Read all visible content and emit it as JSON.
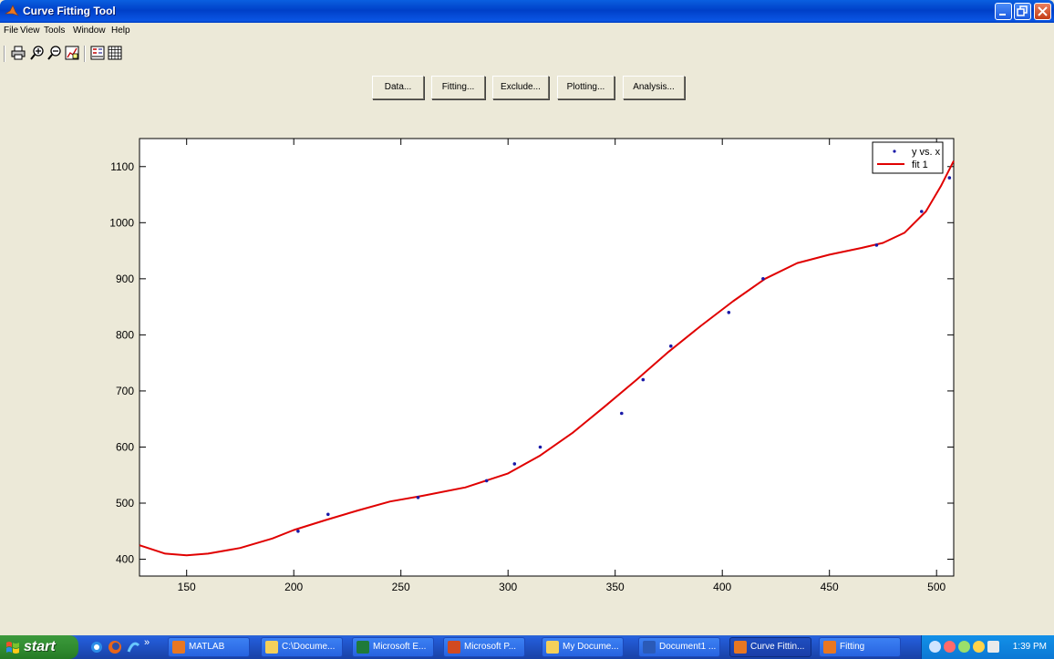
{
  "window": {
    "title": "Curve Fitting Tool",
    "icon": "matlab-icon",
    "controls": [
      "minimize-icon",
      "maximize-icon",
      "close-icon"
    ]
  },
  "menu": {
    "items": [
      "File",
      "View",
      "Tools",
      "Window",
      "Help"
    ]
  },
  "toolbar": {
    "icons": [
      "print-icon",
      "zoom-in-icon",
      "zoom-out-icon",
      "data-cursor-icon",
      "legend-icon",
      "grid-icon"
    ]
  },
  "panel_buttons": {
    "data": "Data...",
    "fitting": "Fitting...",
    "exclude": "Exclude...",
    "plotting": "Plotting...",
    "analysis": "Analysis..."
  },
  "chart_data": {
    "type": "scatter",
    "title": "",
    "xlabel": "",
    "ylabel": "",
    "xlim": [
      128,
      508
    ],
    "ylim": [
      370,
      1150
    ],
    "xticks": [
      150,
      200,
      250,
      300,
      350,
      400,
      450,
      500
    ],
    "yticks": [
      400,
      500,
      600,
      700,
      800,
      900,
      1000,
      1100
    ],
    "grid": false,
    "legend": "top-right",
    "series": [
      {
        "name": "y vs. x",
        "kind": "points",
        "color": "#1a1aa8",
        "x": [
          202,
          216,
          258,
          290,
          303,
          315,
          353,
          363,
          376,
          403,
          419,
          472,
          493,
          506
        ],
        "y": [
          450,
          480,
          510,
          540,
          570,
          600,
          660,
          720,
          780,
          840,
          900,
          960,
          1020,
          1080
        ]
      },
      {
        "name": "fit 1",
        "kind": "line",
        "color": "#e00000",
        "x": [
          128,
          140,
          150,
          160,
          175,
          190,
          200,
          215,
          230,
          245,
          260,
          280,
          300,
          315,
          330,
          345,
          360,
          375,
          390,
          405,
          420,
          435,
          450,
          465,
          475,
          485,
          495,
          502,
          508
        ],
        "y": [
          425,
          410,
          407,
          410,
          420,
          437,
          452,
          470,
          487,
          503,
          513,
          528,
          553,
          585,
          625,
          672,
          720,
          770,
          816,
          860,
          900,
          928,
          943,
          955,
          964,
          982,
          1020,
          1065,
          1110
        ]
      }
    ]
  },
  "taskbar": {
    "start_label": "start",
    "quick_launch": [
      "ie-icon",
      "firefox-icon",
      "ie-alt-icon"
    ],
    "overflow": "»",
    "items": [
      {
        "label": "MATLAB",
        "icon": "matlab-icon"
      },
      {
        "label": "C:\\Docume...",
        "icon": "folder-icon"
      },
      {
        "label": "Microsoft E...",
        "icon": "excel-icon"
      },
      {
        "label": "Microsoft P...",
        "icon": "powerpoint-icon"
      },
      {
        "label": "My Docume...",
        "icon": "folder-icon"
      },
      {
        "label": "Document1 ...",
        "icon": "word-icon"
      },
      {
        "label": "Curve Fittin...",
        "icon": "matlab-icon"
      },
      {
        "label": "Fitting",
        "icon": "matlab-icon"
      }
    ],
    "clock": "1:39 PM"
  }
}
